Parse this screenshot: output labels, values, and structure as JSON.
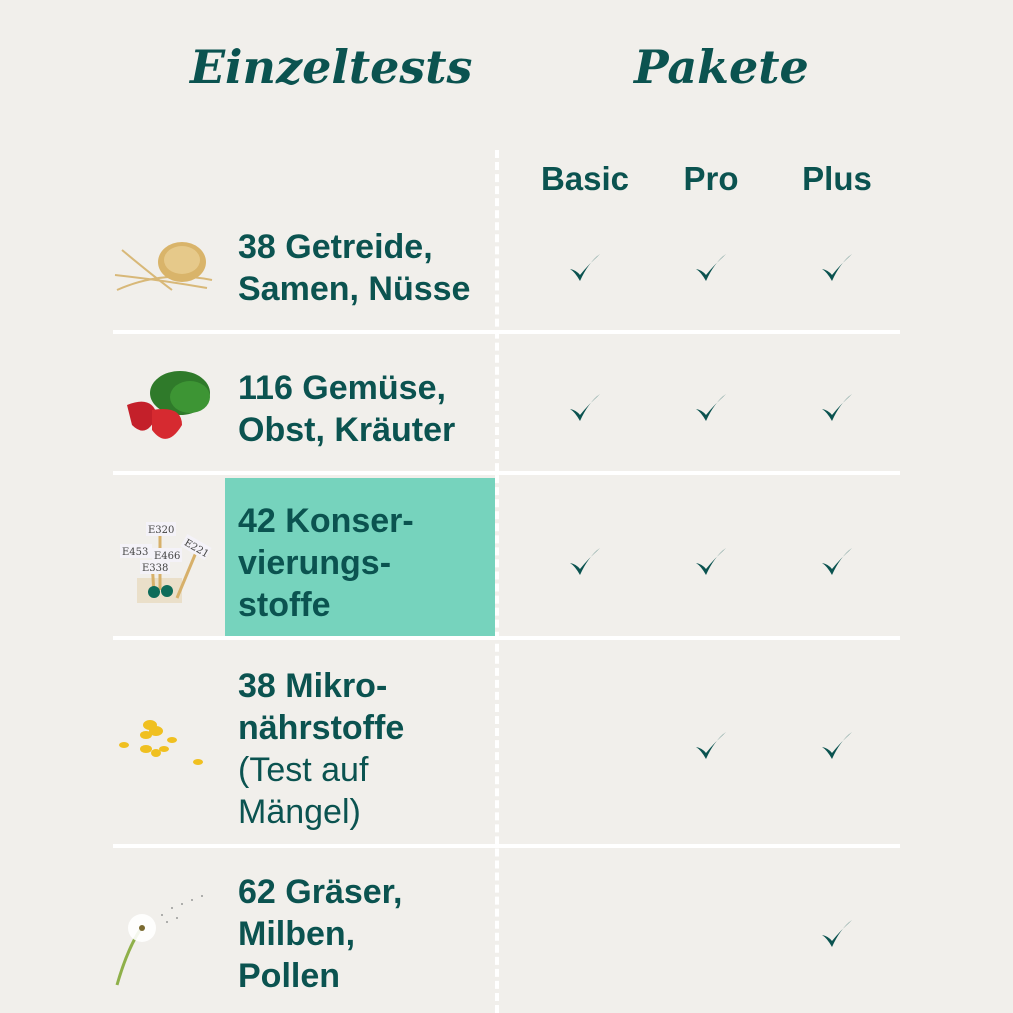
{
  "headers": {
    "single_tests": "Einzeltests",
    "packages": "Pakete"
  },
  "packages": [
    "Basic",
    "Pro",
    "Plus"
  ],
  "colors": {
    "background": "#f1efeb",
    "text": "#0b5350",
    "highlight": "#76d3bd",
    "divider": "#ffffff"
  },
  "rows": [
    {
      "bold_lines": [
        "38 Getreide,",
        "Samen, Nüsse"
      ],
      "regular_lines": [],
      "image": "grain-wheat-image",
      "included": {
        "Basic": true,
        "Pro": true,
        "Plus": true
      },
      "highlighted": false
    },
    {
      "bold_lines": [
        "116 Gemüse,",
        "Obst, Kräuter"
      ],
      "regular_lines": [],
      "image": "strawberry-spinach-image",
      "included": {
        "Basic": true,
        "Pro": true,
        "Plus": true
      },
      "highlighted": false
    },
    {
      "bold_lines": [
        "42 Konser-",
        "vierungs-",
        "stoffe"
      ],
      "regular_lines": [],
      "image": "preservative-signs-image",
      "image_labels": [
        "E320",
        "E453",
        "E466",
        "E221",
        "E338"
      ],
      "included": {
        "Basic": true,
        "Pro": true,
        "Plus": true
      },
      "highlighted": true
    },
    {
      "bold_lines": [
        "38 Mikro-",
        "nährstoffe"
      ],
      "regular_lines": [
        "(Test auf",
        "Mängel)"
      ],
      "image": "capsules-image",
      "included": {
        "Basic": false,
        "Pro": true,
        "Plus": true
      },
      "highlighted": false
    },
    {
      "bold_lines": [
        "62 Gräser,",
        "Milben,",
        "Pollen"
      ],
      "regular_lines": [],
      "image": "dandelion-image",
      "included": {
        "Basic": false,
        "Pro": false,
        "Plus": true
      },
      "highlighted": false
    }
  ]
}
